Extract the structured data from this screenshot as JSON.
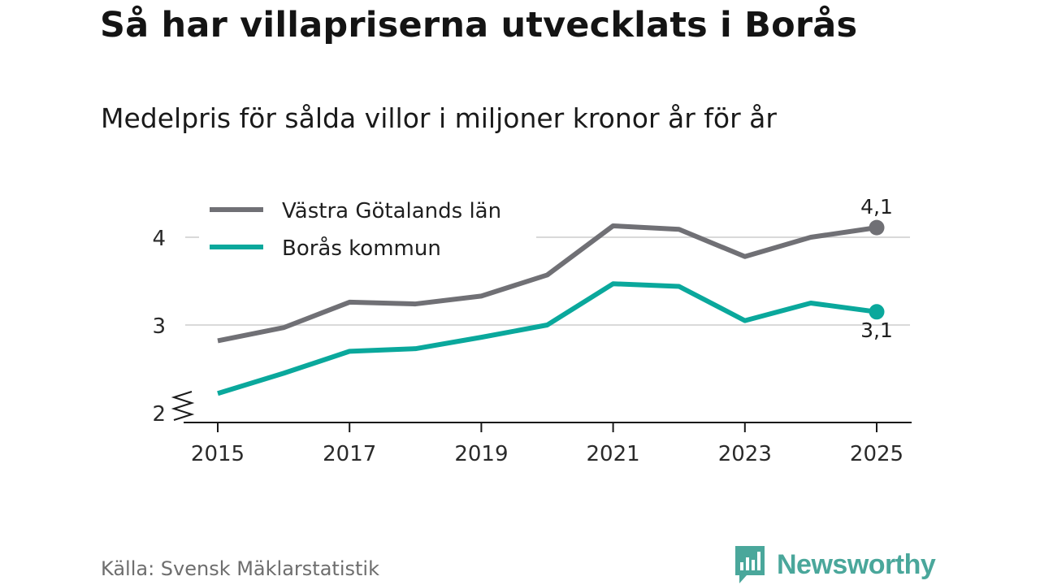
{
  "title": "Så har villapriserna utvecklats i Borås",
  "subtitle": "Medelpris för sålda villor i miljoner kronor år för år",
  "source": "Källa: Svensk Mäklarstatistik",
  "brand": {
    "name": "Newsworthy",
    "color": "#4aa79b",
    "icon": "newsworthy-logo-icon"
  },
  "chart_data": {
    "type": "line",
    "x": [
      2015,
      2016,
      2017,
      2018,
      2019,
      2020,
      2021,
      2022,
      2023,
      2024,
      2025
    ],
    "x_tick_labels": [
      "2015",
      "2017",
      "2019",
      "2021",
      "2023",
      "2025"
    ],
    "y_tick_labels": [
      "2",
      "3",
      "4"
    ],
    "ylim": [
      2,
      4.3
    ],
    "axis_break": true,
    "grid": true,
    "xlabel": "",
    "ylabel": "",
    "legend_position": "top-left",
    "series": [
      {
        "name": "Västra Götalands län",
        "color": "#707075",
        "values": [
          2.82,
          2.97,
          3.26,
          3.24,
          3.33,
          3.57,
          4.13,
          4.09,
          3.78,
          4.0,
          4.11
        ],
        "end_label": "4,1"
      },
      {
        "name": "Borås kommun",
        "color": "#0aa89c",
        "values": [
          2.22,
          2.45,
          2.7,
          2.73,
          2.86,
          3.0,
          3.47,
          3.44,
          3.05,
          3.25,
          3.15
        ],
        "end_label": "3,1"
      }
    ]
  }
}
